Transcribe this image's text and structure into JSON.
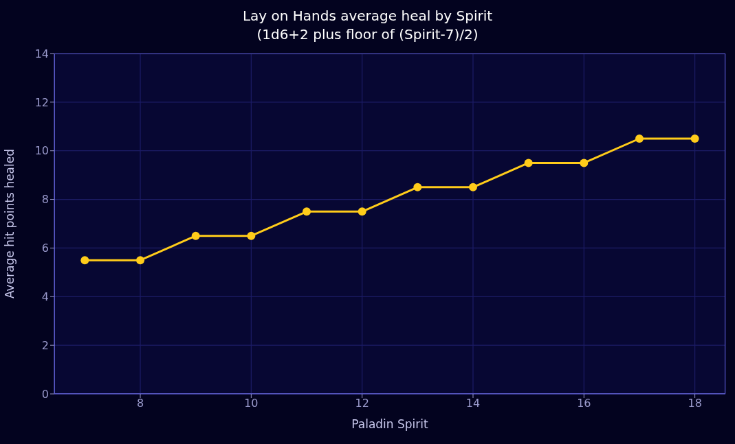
{
  "chart_data": {
    "type": "line",
    "title": "Lay on Hands average heal by Spirit\n(1d6+2 plus floor of (Spirit-7)/2)",
    "xlabel": "Paladin Spirit",
    "ylabel": "Average hit points healed",
    "x": [
      7,
      8,
      9,
      10,
      11,
      12,
      13,
      14,
      15,
      16,
      17,
      18
    ],
    "series": [
      {
        "color": "#ffcc1a",
        "values": [
          5.5,
          5.5,
          6.5,
          6.5,
          7.5,
          7.5,
          8.5,
          8.5,
          9.5,
          9.5,
          10.5,
          10.5
        ]
      }
    ],
    "xlim": [
      6.45,
      18.55
    ],
    "xticks": [
      8,
      10,
      12,
      14,
      16,
      18
    ],
    "ylim": [
      0,
      14
    ],
    "yticks": [
      0,
      2,
      4,
      6,
      8,
      10,
      12,
      14
    ],
    "grid": true,
    "marker": "circle",
    "line_style": "solid"
  }
}
